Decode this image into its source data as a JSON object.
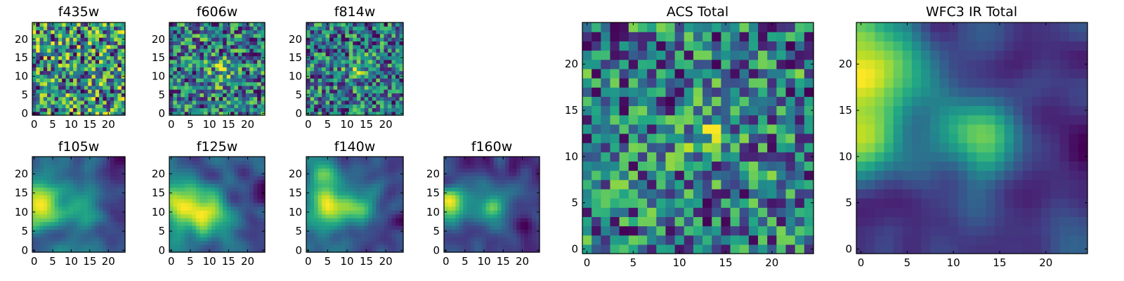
{
  "chart_data": [
    {
      "type": "heatmap",
      "title": "f435w",
      "xticks": [
        0,
        5,
        10,
        15,
        20
      ],
      "yticks": [
        0,
        5,
        10,
        15,
        20
      ],
      "grid": [
        25,
        25
      ],
      "xlim": [
        -0.5,
        24.5
      ],
      "ylim": [
        -0.5,
        24.5
      ],
      "colormap": "viridis",
      "pattern": "noise",
      "grid_lines": false,
      "features": []
    },
    {
      "type": "heatmap",
      "title": "f606w",
      "xticks": [
        0,
        5,
        10,
        15,
        20
      ],
      "yticks": [
        0,
        5,
        10,
        15,
        20
      ],
      "grid": [
        25,
        25
      ],
      "xlim": [
        -0.5,
        24.5
      ],
      "ylim": [
        -0.5,
        24.5
      ],
      "colormap": "viridis",
      "pattern": "noise",
      "grid_lines": false,
      "features": [
        {
          "x": 13,
          "y": 11,
          "sigma": 2.5,
          "amp": 0.25
        }
      ]
    },
    {
      "type": "heatmap",
      "title": "f814w",
      "xticks": [
        0,
        5,
        10,
        15,
        20
      ],
      "yticks": [
        0,
        5,
        10,
        15,
        20
      ],
      "grid": [
        25,
        25
      ],
      "xlim": [
        -0.5,
        24.5
      ],
      "ylim": [
        -0.5,
        24.5
      ],
      "colormap": "viridis",
      "pattern": "noise",
      "grid_lines": false,
      "features": [
        {
          "x": 13,
          "y": 12,
          "sigma": 2.2,
          "amp": 0.35
        }
      ]
    },
    {
      "type": "heatmap",
      "title": "f105w",
      "xticks": [
        0,
        5,
        10,
        15,
        20
      ],
      "yticks": [
        0,
        5,
        10,
        15,
        20
      ],
      "grid": [
        25,
        25
      ],
      "xlim": [
        -0.5,
        24.5
      ],
      "ylim": [
        -0.5,
        24.5
      ],
      "colormap": "viridis",
      "pattern": "smooth",
      "grid_lines": false,
      "features": [
        {
          "x": 1,
          "y": 12,
          "sigma": 4,
          "amp": 0.5
        },
        {
          "x": 12,
          "y": 11,
          "sigma": 3,
          "amp": 0.25
        }
      ]
    },
    {
      "type": "heatmap",
      "title": "f125w",
      "xticks": [
        0,
        5,
        10,
        15,
        20
      ],
      "yticks": [
        0,
        5,
        10,
        15,
        20
      ],
      "grid": [
        25,
        25
      ],
      "xlim": [
        -0.5,
        24.5
      ],
      "ylim": [
        -0.5,
        24.5
      ],
      "colormap": "viridis",
      "pattern": "smooth",
      "grid_lines": false,
      "features": [
        {
          "x": 5,
          "y": 11,
          "sigma": 5,
          "amp": 0.45
        },
        {
          "x": 12,
          "y": 10,
          "sigma": 3,
          "amp": 0.3
        }
      ]
    },
    {
      "type": "heatmap",
      "title": "f140w",
      "xticks": [
        0,
        5,
        10,
        15,
        20
      ],
      "yticks": [
        0,
        5,
        10,
        15,
        20
      ],
      "grid": [
        25,
        25
      ],
      "xlim": [
        -0.5,
        24.5
      ],
      "ylim": [
        -0.5,
        24.5
      ],
      "colormap": "viridis",
      "pattern": "smooth",
      "grid_lines": false,
      "features": [
        {
          "x": 5,
          "y": 12,
          "sigma": 4,
          "amp": 0.45
        },
        {
          "x": 3,
          "y": 20,
          "sigma": 2.5,
          "amp": 0.35
        },
        {
          "x": 13,
          "y": 11,
          "sigma": 3,
          "amp": 0.3
        }
      ]
    },
    {
      "type": "heatmap",
      "title": "f160w",
      "xticks": [
        0,
        5,
        10,
        15,
        20
      ],
      "yticks": [
        0,
        5,
        10,
        15,
        20
      ],
      "grid": [
        25,
        25
      ],
      "xlim": [
        -0.5,
        24.5
      ],
      "ylim": [
        -0.5,
        24.5
      ],
      "colormap": "viridis",
      "pattern": "smooth",
      "grid_lines": false,
      "features": [
        {
          "x": 1,
          "y": 12,
          "sigma": 3,
          "amp": 0.6
        },
        {
          "x": 12,
          "y": 11,
          "sigma": 3,
          "amp": 0.3
        }
      ]
    },
    {
      "type": "heatmap",
      "title": "ACS Total",
      "xticks": [
        0,
        5,
        10,
        15,
        20
      ],
      "yticks": [
        0,
        5,
        10,
        15,
        20
      ],
      "grid": [
        25,
        25
      ],
      "xlim": [
        -0.5,
        24.5
      ],
      "ylim": [
        -0.5,
        24.5
      ],
      "colormap": "viridis",
      "pattern": "noise",
      "grid_lines": false,
      "features": [
        {
          "x": 13,
          "y": 12,
          "sigma": 1.8,
          "amp": 0.35
        }
      ]
    },
    {
      "type": "heatmap",
      "title": "WFC3 IR Total",
      "xticks": [
        0,
        5,
        10,
        15,
        20
      ],
      "yticks": [
        0,
        5,
        10,
        15,
        20
      ],
      "grid": [
        25,
        25
      ],
      "xlim": [
        -0.5,
        24.5
      ],
      "ylim": [
        -0.5,
        24.5
      ],
      "colormap": "viridis",
      "pattern": "smooth",
      "grid_lines": false,
      "features": [
        {
          "x": 0,
          "y": 20,
          "sigma": 4.5,
          "amp": 0.75
        },
        {
          "x": 13,
          "y": 12,
          "sigma": 2.6,
          "amp": 0.6
        },
        {
          "x": 0,
          "y": 12,
          "sigma": 3.5,
          "amp": 0.4
        }
      ]
    }
  ]
}
